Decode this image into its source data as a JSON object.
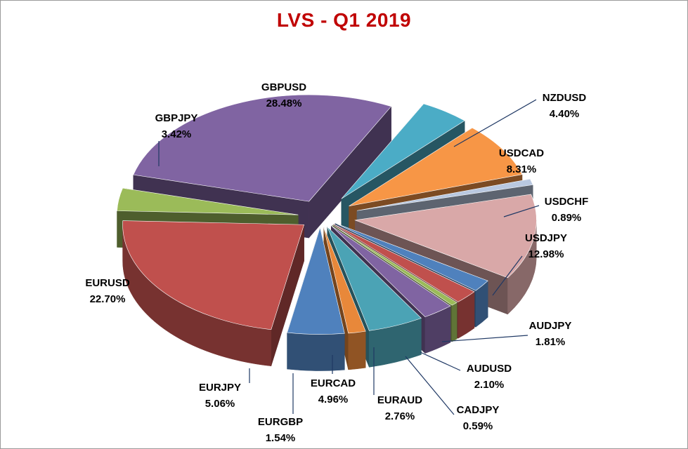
{
  "chart_data": {
    "type": "pie",
    "title": "LVS - Q1 2019",
    "style": "3d-exploded",
    "slices": [
      {
        "name": "NZDUSD",
        "value": 4.4,
        "label": "4.40%",
        "color": "#4bacc6"
      },
      {
        "name": "USDCAD",
        "value": 8.31,
        "label": "8.31%",
        "color": "#f79646"
      },
      {
        "name": "USDCHF",
        "value": 0.89,
        "label": "0.89%",
        "color": "#b9c8e0"
      },
      {
        "name": "USDJPY",
        "value": 12.98,
        "label": "12.98%",
        "color": "#d9a8a8"
      },
      {
        "name": "AUDJPY",
        "value": 1.81,
        "label": "1.81%",
        "color": "#4f81bd"
      },
      {
        "name": "AUDUSD",
        "value": 2.1,
        "label": "2.10%",
        "color": "#c0504d"
      },
      {
        "name": "CADJPY",
        "value": 0.59,
        "label": "0.59%",
        "color": "#9bbb59"
      },
      {
        "name": "EURAUD",
        "value": 2.76,
        "label": "2.76%",
        "color": "#8064a2"
      },
      {
        "name": "EURCAD",
        "value": 4.96,
        "label": "4.96%",
        "color": "#4ba3b5"
      },
      {
        "name": "EURGBP",
        "value": 1.54,
        "label": "1.54%",
        "color": "#e8883a"
      },
      {
        "name": "EURJPY",
        "value": 5.06,
        "label": "5.06%",
        "color": "#4f81bd"
      },
      {
        "name": "EURUSD",
        "value": 22.7,
        "label": "22.70%",
        "color": "#c0504d"
      },
      {
        "name": "GBPJPY",
        "value": 3.42,
        "label": "3.42%",
        "color": "#9bbb59"
      },
      {
        "name": "GBPUSD",
        "value": 28.48,
        "label": "28.48%",
        "color": "#8064a2"
      }
    ]
  }
}
